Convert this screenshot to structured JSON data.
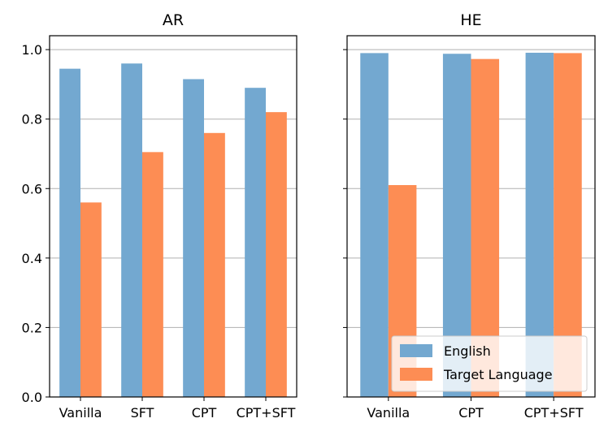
{
  "chart_data": [
    {
      "type": "bar",
      "title": "AR",
      "categories": [
        "Vanilla",
        "SFT",
        "CPT",
        "CPT+SFT"
      ],
      "series": [
        {
          "name": "English",
          "values": [
            0.945,
            0.96,
            0.915,
            0.89
          ]
        },
        {
          "name": "Target Language",
          "values": [
            0.56,
            0.705,
            0.76,
            0.82
          ]
        }
      ],
      "ylim": [
        0.0,
        1.04
      ],
      "yticks": [
        "0.0",
        "0.2",
        "0.4",
        "0.6",
        "0.8",
        "1.0"
      ],
      "ytick_values": [
        0.0,
        0.2,
        0.4,
        0.6,
        0.8,
        1.0
      ],
      "grid": "horizontal",
      "show_ytick_labels": true
    },
    {
      "type": "bar",
      "title": "HE",
      "categories": [
        "Vanilla",
        "CPT",
        "CPT+SFT"
      ],
      "series": [
        {
          "name": "English",
          "values": [
            0.99,
            0.988,
            0.991
          ]
        },
        {
          "name": "Target Language",
          "values": [
            0.61,
            0.973,
            0.99
          ]
        }
      ],
      "ylim": [
        0.0,
        1.04
      ],
      "yticks": [
        "0.0",
        "0.2",
        "0.4",
        "0.6",
        "0.8",
        "1.0"
      ],
      "ytick_values": [
        0.0,
        0.2,
        0.4,
        0.6,
        0.8,
        1.0
      ],
      "grid": "horizontal",
      "show_ytick_labels": false
    }
  ],
  "legend": {
    "location": "lower-right",
    "entries": [
      {
        "label": "English",
        "color": "#73a8d0"
      },
      {
        "label": "Target Language",
        "color": "#fd8d54"
      }
    ]
  },
  "colors": {
    "english": "#73a8d0",
    "target": "#fd8d54",
    "grid": "#b0b0b0"
  }
}
